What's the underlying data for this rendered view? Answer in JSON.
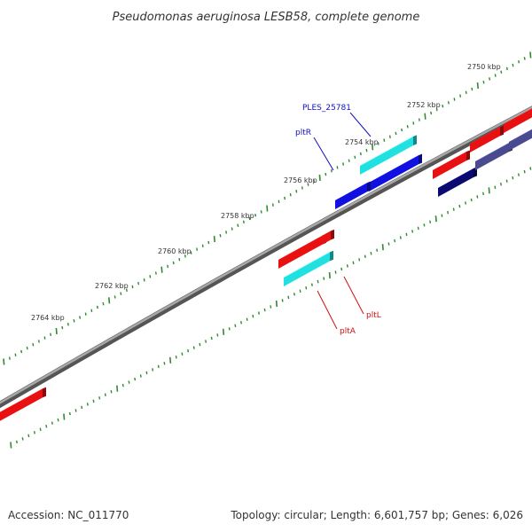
{
  "title": "Pseudomonas aeruginosa LESB58, complete genome",
  "footer": {
    "accession": "Accession: NC_011770",
    "topology": "Topology: circular; Length: 6,601,757 bp; Genes: 6,026"
  },
  "colors": {
    "background": "#ffffff",
    "backbone": "#808080",
    "tick_marks": "#2e8b2e",
    "cds_forward": "#1010e0",
    "cds_reverse": "#e81010",
    "feature_cyan": "#20e0e0",
    "cds_dark": "#0a0a70",
    "cds_slate": "#4a4a90"
  },
  "tick_labels": [
    "2750 kbp",
    "2752 kbp",
    "2754 kbp",
    "2756 kbp",
    "2758 kbp",
    "2760 kbp",
    "2762 kbp",
    "2764 kbp"
  ],
  "gene_labels": {
    "ples": "PLES_25781",
    "pltR": "pltR",
    "pltL": "pltL",
    "pltA": "pltA"
  }
}
